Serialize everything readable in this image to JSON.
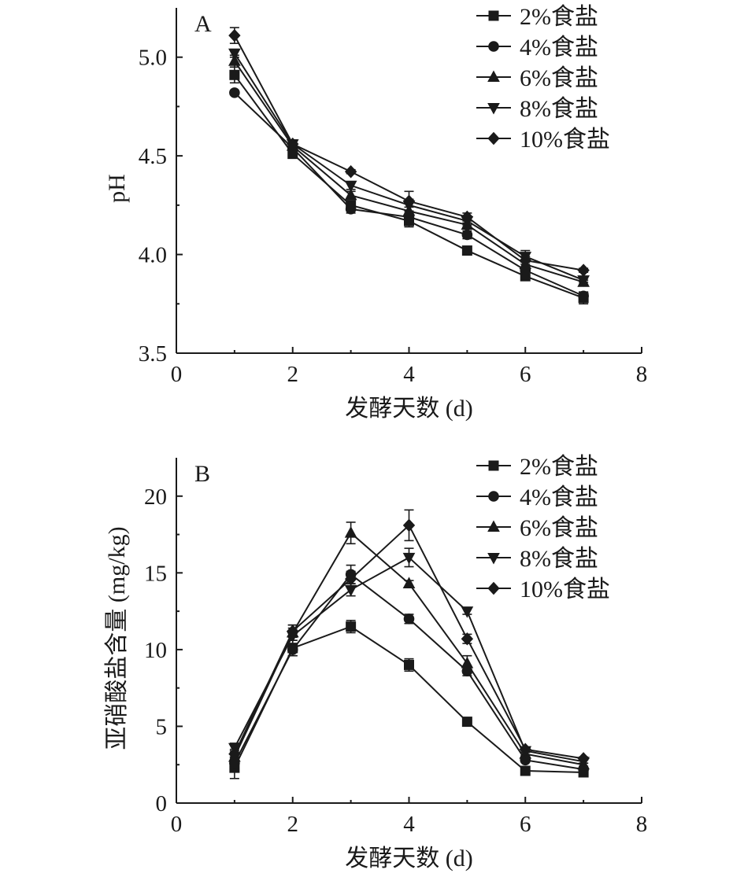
{
  "chart_data": [
    {
      "type": "line",
      "panel_label": "A",
      "xlabel": "发酵天数 (d)",
      "ylabel": "pH",
      "xlim": [
        0,
        8
      ],
      "ylim": [
        3.5,
        5.25
      ],
      "xticks": [
        "0",
        "2",
        "4",
        "6",
        "8"
      ],
      "yticks": [
        "3.5",
        "4.0",
        "4.5",
        "5.0"
      ],
      "legend_position": "top-right",
      "x": [
        1,
        2,
        3,
        4,
        5,
        6,
        7
      ],
      "series": [
        {
          "name": "2%食盐",
          "marker": "square",
          "values": [
            4.91,
            4.51,
            4.25,
            4.17,
            4.02,
            3.89,
            3.78
          ],
          "errors": [
            0.04,
            0.01,
            0.02,
            0.03,
            0.01,
            0.01,
            0.03
          ]
        },
        {
          "name": "4%食盐",
          "marker": "circle",
          "values": [
            4.82,
            4.54,
            4.23,
            4.19,
            4.1,
            3.92,
            3.79
          ],
          "errors": [
            0.01,
            0.01,
            0.02,
            0.02,
            0.02,
            0.01,
            0.02
          ]
        },
        {
          "name": "6%食盐",
          "marker": "triangle-up",
          "values": [
            4.98,
            4.55,
            4.3,
            4.22,
            4.15,
            3.95,
            3.86
          ],
          "errors": [
            0.03,
            0.01,
            0.02,
            0.02,
            0.01,
            0.02,
            0.01
          ]
        },
        {
          "name": "8%食盐",
          "marker": "triangle-down",
          "values": [
            5.02,
            4.56,
            4.35,
            4.25,
            4.17,
            3.99,
            3.87
          ],
          "errors": [
            0.02,
            0.02,
            0.02,
            0.03,
            0.02,
            0.03,
            0.01
          ]
        },
        {
          "name": "10%食盐",
          "marker": "diamond",
          "values": [
            5.11,
            4.56,
            4.42,
            4.27,
            4.19,
            3.97,
            3.92
          ],
          "errors": [
            0.04,
            0.02,
            0.01,
            0.05,
            0.02,
            0.02,
            0.01
          ]
        }
      ]
    },
    {
      "type": "line",
      "panel_label": "B",
      "xlabel": "发酵天数 (d)",
      "ylabel": "亚硝酸盐含量 (mg/kg)",
      "xlim": [
        0,
        8
      ],
      "ylim": [
        0,
        22.5
      ],
      "xticks": [
        "0",
        "2",
        "4",
        "6",
        "8"
      ],
      "yticks": [
        "0",
        "5",
        "10",
        "15",
        "20"
      ],
      "legend_position": "top-right",
      "x": [
        1,
        2,
        3,
        4,
        5,
        6,
        7
      ],
      "series": [
        {
          "name": "2%食盐",
          "marker": "square",
          "values": [
            2.3,
            10.1,
            11.5,
            9.0,
            5.3,
            2.1,
            2.0
          ],
          "errors": [
            0.7,
            0.5,
            0.4,
            0.4,
            0.1,
            0.1,
            0.1
          ]
        },
        {
          "name": "4%食盐",
          "marker": "circle",
          "values": [
            2.6,
            10.0,
            14.9,
            12.0,
            8.6,
            2.8,
            2.2
          ],
          "errors": [
            0.4,
            0.4,
            0.6,
            0.3,
            0.3,
            0.1,
            0.1
          ]
        },
        {
          "name": "6%食盐",
          "marker": "triangle-up",
          "values": [
            3.0,
            11.1,
            17.6,
            14.3,
            9.1,
            3.2,
            2.5
          ],
          "errors": [
            0.4,
            0.5,
            0.7,
            0.2,
            0.5,
            0.1,
            0.1
          ]
        },
        {
          "name": "8%食盐",
          "marker": "triangle-down",
          "values": [
            3.6,
            10.9,
            13.9,
            16.0,
            12.5,
            3.4,
            2.7
          ],
          "errors": [
            0.3,
            0.5,
            0.4,
            0.6,
            0.2,
            0.1,
            0.1
          ]
        },
        {
          "name": "10%食盐",
          "marker": "diamond",
          "values": [
            3.2,
            11.2,
            14.6,
            18.1,
            10.7,
            3.5,
            2.9
          ],
          "errors": [
            0.3,
            0.4,
            0.5,
            1.0,
            0.3,
            0.1,
            0.1
          ]
        }
      ]
    }
  ]
}
